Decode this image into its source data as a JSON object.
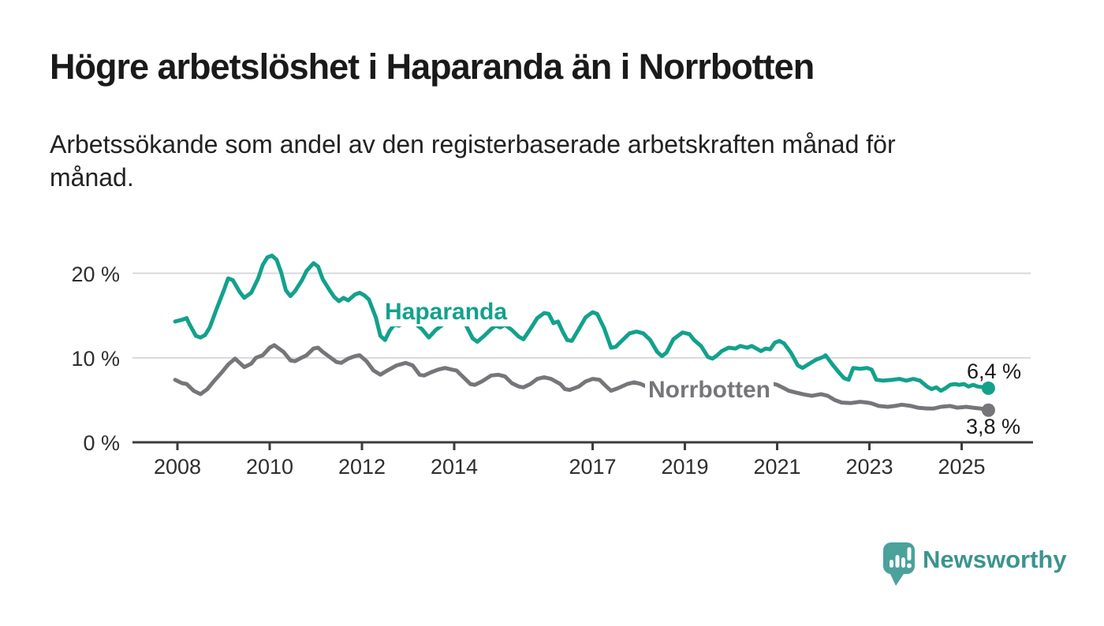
{
  "title": "Högre arbetslöshet i Haparanda än i Norrbotten",
  "subtitle": "Arbetssökande som andel av den registerbaserade arbetskraften månad för månad.",
  "branding": {
    "logo_text": "Newsworthy",
    "logo_color": "#4aa29b",
    "logo_text_color": "#3b948e"
  },
  "colors": {
    "axis": "#3c3c3c",
    "grid": "#d9d9d9",
    "tick_text": "#2e2e2e",
    "value_text": "#1a1a1a"
  },
  "chart_data": {
    "type": "line",
    "title": "Högre arbetslöshet i Haparanda än i Norrbotten",
    "subtitle": "Arbetssökande som andel av den registerbaserade arbetskraften månad för månad.",
    "xlabel": "",
    "ylabel": "",
    "unit": "%",
    "xlim": [
      2007.9,
      2025.95
    ],
    "ylim": [
      0,
      23
    ],
    "grid": "horizontal",
    "y_gridlines": [
      10,
      20
    ],
    "y_ticks": [
      0,
      10,
      20
    ],
    "y_tick_labels": [
      "0 %",
      "10 %",
      "20 %"
    ],
    "x_ticks": [
      2008,
      2010,
      2012,
      2014,
      2017,
      2019,
      2021,
      2023,
      2025
    ],
    "x_tick_labels": [
      "2008",
      "2010",
      "2012",
      "2014",
      "2017",
      "2019",
      "2021",
      "2023",
      "2025"
    ],
    "legend_position": "inline-labels",
    "series": [
      {
        "name": "Haparanda",
        "color": "#13a18c",
        "end_value": 6.4,
        "end_label": "6,4 %",
        "points": [
          [
            2007.95,
            14.3
          ],
          [
            2008.1,
            14.5
          ],
          [
            2008.2,
            14.7
          ],
          [
            2008.25,
            14.1
          ],
          [
            2008.4,
            12.6
          ],
          [
            2008.5,
            12.4
          ],
          [
            2008.6,
            12.7
          ],
          [
            2008.7,
            13.6
          ],
          [
            2008.85,
            15.8
          ],
          [
            2009.0,
            17.9
          ],
          [
            2009.1,
            19.4
          ],
          [
            2009.2,
            19.2
          ],
          [
            2009.35,
            17.8
          ],
          [
            2009.45,
            17.1
          ],
          [
            2009.6,
            17.7
          ],
          [
            2009.75,
            19.4
          ],
          [
            2009.85,
            21.0
          ],
          [
            2009.95,
            21.9
          ],
          [
            2010.05,
            22.1
          ],
          [
            2010.15,
            21.6
          ],
          [
            2010.25,
            20.1
          ],
          [
            2010.35,
            18.0
          ],
          [
            2010.45,
            17.3
          ],
          [
            2010.55,
            17.9
          ],
          [
            2010.7,
            19.2
          ],
          [
            2010.8,
            20.3
          ],
          [
            2010.95,
            21.2
          ],
          [
            2011.05,
            20.8
          ],
          [
            2011.15,
            19.3
          ],
          [
            2011.3,
            18.0
          ],
          [
            2011.4,
            17.2
          ],
          [
            2011.5,
            16.7
          ],
          [
            2011.6,
            17.1
          ],
          [
            2011.7,
            16.8
          ],
          [
            2011.85,
            17.5
          ],
          [
            2011.95,
            17.7
          ],
          [
            2012.05,
            17.4
          ],
          [
            2012.15,
            16.9
          ],
          [
            2012.3,
            14.8
          ],
          [
            2012.4,
            12.6
          ],
          [
            2012.5,
            12.1
          ],
          [
            2012.6,
            13.2
          ],
          [
            2012.7,
            13.9
          ],
          [
            2012.8,
            13.8
          ],
          [
            2012.95,
            14.2
          ],
          [
            2013.1,
            14.3
          ],
          [
            2013.3,
            13.4
          ],
          [
            2013.45,
            12.4
          ],
          [
            2013.6,
            13.3
          ],
          [
            2013.8,
            14.1
          ],
          [
            2013.95,
            14.0
          ],
          [
            2014.1,
            14.2
          ],
          [
            2014.25,
            13.9
          ],
          [
            2014.4,
            12.3
          ],
          [
            2014.5,
            11.9
          ],
          [
            2014.65,
            12.6
          ],
          [
            2014.8,
            13.4
          ],
          [
            2014.9,
            13.8
          ],
          [
            2015.0,
            13.6
          ],
          [
            2015.1,
            13.9
          ],
          [
            2015.25,
            13.3
          ],
          [
            2015.4,
            12.5
          ],
          [
            2015.5,
            12.2
          ],
          [
            2015.65,
            13.4
          ],
          [
            2015.8,
            14.7
          ],
          [
            2015.95,
            15.3
          ],
          [
            2016.05,
            15.2
          ],
          [
            2016.15,
            14.1
          ],
          [
            2016.25,
            14.3
          ],
          [
            2016.35,
            13.1
          ],
          [
            2016.45,
            12.1
          ],
          [
            2016.55,
            12.0
          ],
          [
            2016.7,
            13.4
          ],
          [
            2016.85,
            14.8
          ],
          [
            2017.0,
            15.4
          ],
          [
            2017.1,
            15.2
          ],
          [
            2017.25,
            13.5
          ],
          [
            2017.4,
            11.2
          ],
          [
            2017.5,
            11.3
          ],
          [
            2017.65,
            12.1
          ],
          [
            2017.8,
            12.9
          ],
          [
            2017.95,
            13.1
          ],
          [
            2018.1,
            12.9
          ],
          [
            2018.25,
            12.1
          ],
          [
            2018.4,
            10.7
          ],
          [
            2018.5,
            10.2
          ],
          [
            2018.6,
            10.6
          ],
          [
            2018.75,
            12.2
          ],
          [
            2018.95,
            13.0
          ],
          [
            2019.1,
            12.8
          ],
          [
            2019.2,
            12.1
          ],
          [
            2019.35,
            11.4
          ],
          [
            2019.5,
            10.1
          ],
          [
            2019.6,
            9.9
          ],
          [
            2019.7,
            10.3
          ],
          [
            2019.8,
            10.8
          ],
          [
            2019.95,
            11.2
          ],
          [
            2020.1,
            11.1
          ],
          [
            2020.2,
            11.4
          ],
          [
            2020.35,
            11.2
          ],
          [
            2020.45,
            11.4
          ],
          [
            2020.55,
            11.1
          ],
          [
            2020.65,
            10.8
          ],
          [
            2020.75,
            11.1
          ],
          [
            2020.85,
            11.0
          ],
          [
            2020.95,
            11.8
          ],
          [
            2021.05,
            12.0
          ],
          [
            2021.15,
            11.7
          ],
          [
            2021.3,
            10.6
          ],
          [
            2021.45,
            9.1
          ],
          [
            2021.55,
            8.8
          ],
          [
            2021.7,
            9.3
          ],
          [
            2021.85,
            9.8
          ],
          [
            2022.0,
            10.1
          ],
          [
            2022.05,
            10.3
          ],
          [
            2022.2,
            9.2
          ],
          [
            2022.35,
            8.2
          ],
          [
            2022.45,
            7.6
          ],
          [
            2022.55,
            7.4
          ],
          [
            2022.65,
            8.8
          ],
          [
            2022.8,
            8.7
          ],
          [
            2022.95,
            8.8
          ],
          [
            2023.05,
            8.6
          ],
          [
            2023.15,
            7.4
          ],
          [
            2023.3,
            7.3
          ],
          [
            2023.5,
            7.4
          ],
          [
            2023.65,
            7.5
          ],
          [
            2023.8,
            7.3
          ],
          [
            2023.95,
            7.5
          ],
          [
            2024.1,
            7.3
          ],
          [
            2024.25,
            6.6
          ],
          [
            2024.35,
            6.3
          ],
          [
            2024.45,
            6.5
          ],
          [
            2024.55,
            6.1
          ],
          [
            2024.65,
            6.4
          ],
          [
            2024.75,
            6.8
          ],
          [
            2024.85,
            6.9
          ],
          [
            2024.95,
            6.8
          ],
          [
            2025.05,
            6.9
          ],
          [
            2025.15,
            6.6
          ],
          [
            2025.25,
            6.8
          ],
          [
            2025.35,
            6.6
          ],
          [
            2025.5,
            6.5
          ],
          [
            2025.58,
            6.4
          ]
        ]
      },
      {
        "name": "Norrbotten",
        "color": "#76767a",
        "end_value": 3.8,
        "end_label": "3,8 %",
        "points": [
          [
            2007.95,
            7.4
          ],
          [
            2008.1,
            7.0
          ],
          [
            2008.2,
            6.9
          ],
          [
            2008.35,
            6.1
          ],
          [
            2008.5,
            5.7
          ],
          [
            2008.65,
            6.3
          ],
          [
            2008.8,
            7.3
          ],
          [
            2008.95,
            8.2
          ],
          [
            2009.1,
            9.2
          ],
          [
            2009.25,
            9.9
          ],
          [
            2009.35,
            9.4
          ],
          [
            2009.45,
            8.9
          ],
          [
            2009.6,
            9.3
          ],
          [
            2009.7,
            10.0
          ],
          [
            2009.85,
            10.3
          ],
          [
            2010.0,
            11.2
          ],
          [
            2010.1,
            11.5
          ],
          [
            2010.2,
            11.1
          ],
          [
            2010.3,
            10.7
          ],
          [
            2010.45,
            9.7
          ],
          [
            2010.55,
            9.6
          ],
          [
            2010.65,
            9.9
          ],
          [
            2010.8,
            10.3
          ],
          [
            2010.95,
            11.1
          ],
          [
            2011.05,
            11.2
          ],
          [
            2011.15,
            10.7
          ],
          [
            2011.3,
            10.1
          ],
          [
            2011.45,
            9.5
          ],
          [
            2011.55,
            9.4
          ],
          [
            2011.7,
            9.9
          ],
          [
            2011.85,
            10.2
          ],
          [
            2011.95,
            10.3
          ],
          [
            2012.1,
            9.6
          ],
          [
            2012.25,
            8.5
          ],
          [
            2012.4,
            8.0
          ],
          [
            2012.55,
            8.5
          ],
          [
            2012.75,
            9.1
          ],
          [
            2012.95,
            9.4
          ],
          [
            2013.1,
            9.1
          ],
          [
            2013.25,
            8.0
          ],
          [
            2013.35,
            7.9
          ],
          [
            2013.5,
            8.3
          ],
          [
            2013.65,
            8.6
          ],
          [
            2013.8,
            8.8
          ],
          [
            2013.95,
            8.6
          ],
          [
            2014.05,
            8.5
          ],
          [
            2014.2,
            7.7
          ],
          [
            2014.35,
            6.9
          ],
          [
            2014.45,
            6.8
          ],
          [
            2014.6,
            7.2
          ],
          [
            2014.8,
            7.9
          ],
          [
            2014.95,
            8.0
          ],
          [
            2015.1,
            7.8
          ],
          [
            2015.25,
            7.0
          ],
          [
            2015.4,
            6.6
          ],
          [
            2015.5,
            6.5
          ],
          [
            2015.65,
            6.9
          ],
          [
            2015.8,
            7.5
          ],
          [
            2015.95,
            7.7
          ],
          [
            2016.1,
            7.5
          ],
          [
            2016.3,
            6.9
          ],
          [
            2016.4,
            6.3
          ],
          [
            2016.5,
            6.2
          ],
          [
            2016.7,
            6.6
          ],
          [
            2016.85,
            7.2
          ],
          [
            2017.0,
            7.5
          ],
          [
            2017.15,
            7.4
          ],
          [
            2017.3,
            6.6
          ],
          [
            2017.4,
            6.1
          ],
          [
            2017.55,
            6.4
          ],
          [
            2017.75,
            6.9
          ],
          [
            2017.9,
            7.1
          ],
          [
            2018.05,
            6.9
          ],
          [
            2018.2,
            6.5
          ],
          [
            2018.4,
            6.2
          ],
          [
            2018.55,
            6.4
          ],
          [
            2018.75,
            6.8
          ],
          [
            2018.95,
            7.0
          ],
          [
            2019.1,
            6.8
          ],
          [
            2019.3,
            6.3
          ],
          [
            2019.5,
            6.1
          ],
          [
            2019.7,
            6.4
          ],
          [
            2019.9,
            6.7
          ],
          [
            2020.05,
            6.9
          ],
          [
            2020.25,
            7.3
          ],
          [
            2020.45,
            7.5
          ],
          [
            2020.65,
            7.3
          ],
          [
            2020.85,
            7.0
          ],
          [
            2021.0,
            6.8
          ],
          [
            2021.15,
            6.4
          ],
          [
            2021.25,
            6.1
          ],
          [
            2021.4,
            5.9
          ],
          [
            2021.55,
            5.7
          ],
          [
            2021.75,
            5.5
          ],
          [
            2021.95,
            5.7
          ],
          [
            2022.1,
            5.5
          ],
          [
            2022.25,
            5.0
          ],
          [
            2022.4,
            4.7
          ],
          [
            2022.6,
            4.65
          ],
          [
            2022.8,
            4.8
          ],
          [
            2022.95,
            4.7
          ],
          [
            2023.05,
            4.6
          ],
          [
            2023.2,
            4.3
          ],
          [
            2023.4,
            4.2
          ],
          [
            2023.55,
            4.3
          ],
          [
            2023.7,
            4.45
          ],
          [
            2023.9,
            4.3
          ],
          [
            2024.05,
            4.1
          ],
          [
            2024.25,
            4.0
          ],
          [
            2024.4,
            4.0
          ],
          [
            2024.55,
            4.2
          ],
          [
            2024.75,
            4.3
          ],
          [
            2024.9,
            4.1
          ],
          [
            2025.1,
            4.2
          ],
          [
            2025.25,
            4.1
          ],
          [
            2025.4,
            4.0
          ],
          [
            2025.58,
            3.8
          ]
        ]
      }
    ]
  }
}
